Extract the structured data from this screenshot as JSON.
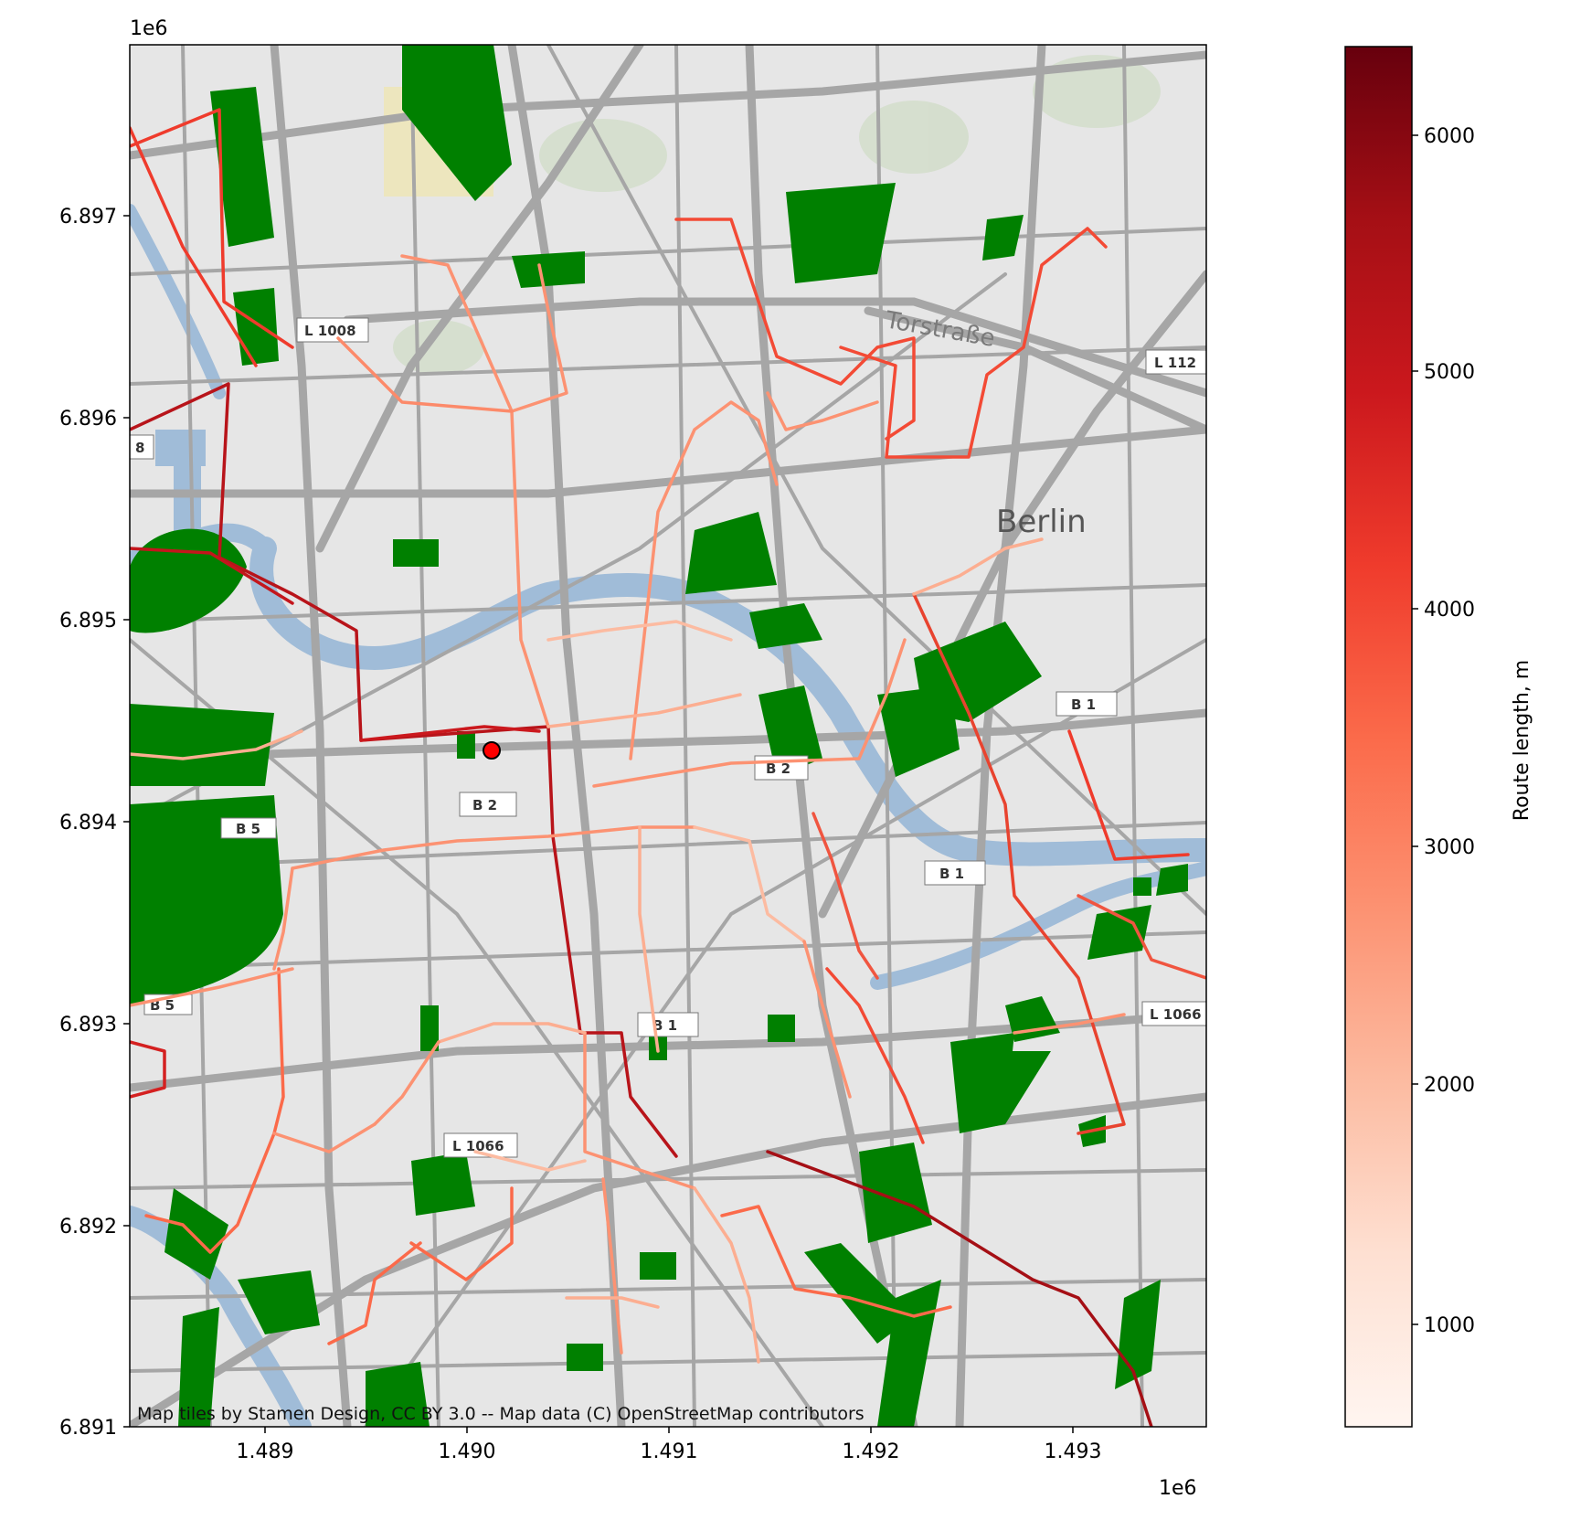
{
  "map": {
    "x_exponent": "1e6",
    "y_exponent": "1e6",
    "x_ticks": [
      "1.489",
      "1.490",
      "1.491",
      "1.492",
      "1.493"
    ],
    "y_ticks": [
      "6.897",
      "6.896",
      "6.895",
      "6.894",
      "6.893",
      "6.892",
      "6.891"
    ],
    "attribution": "Map tiles by Stamen Design, CC BY 3.0 -- Map data (C) OpenStreetMap contributors",
    "basemap_labels": {
      "city": "Berlin",
      "street": "Torstraße",
      "roads": [
        "L 1008",
        "L 112",
        "B 1",
        "B 2",
        "B 2",
        "B 5",
        "B 1",
        "B 1",
        "L 1066",
        "L 1066",
        "8",
        "B 5"
      ]
    },
    "colors": {
      "park": "#008000",
      "water": "#a0bcd8",
      "road": "#a6a6a6",
      "land": "#e6e6e6",
      "origin_marker": "#ff0000"
    },
    "origin": {
      "x": 1.49013,
      "y": 6.89437
    }
  },
  "colorbar": {
    "label": "Route length, m",
    "ticks": [
      "1000",
      "2000",
      "3000",
      "4000",
      "5000",
      "6000"
    ],
    "tick_values": [
      1000,
      2000,
      3000,
      4000,
      5000,
      6000
    ],
    "range": [
      500,
      6400
    ],
    "colormap": "Reds"
  }
}
